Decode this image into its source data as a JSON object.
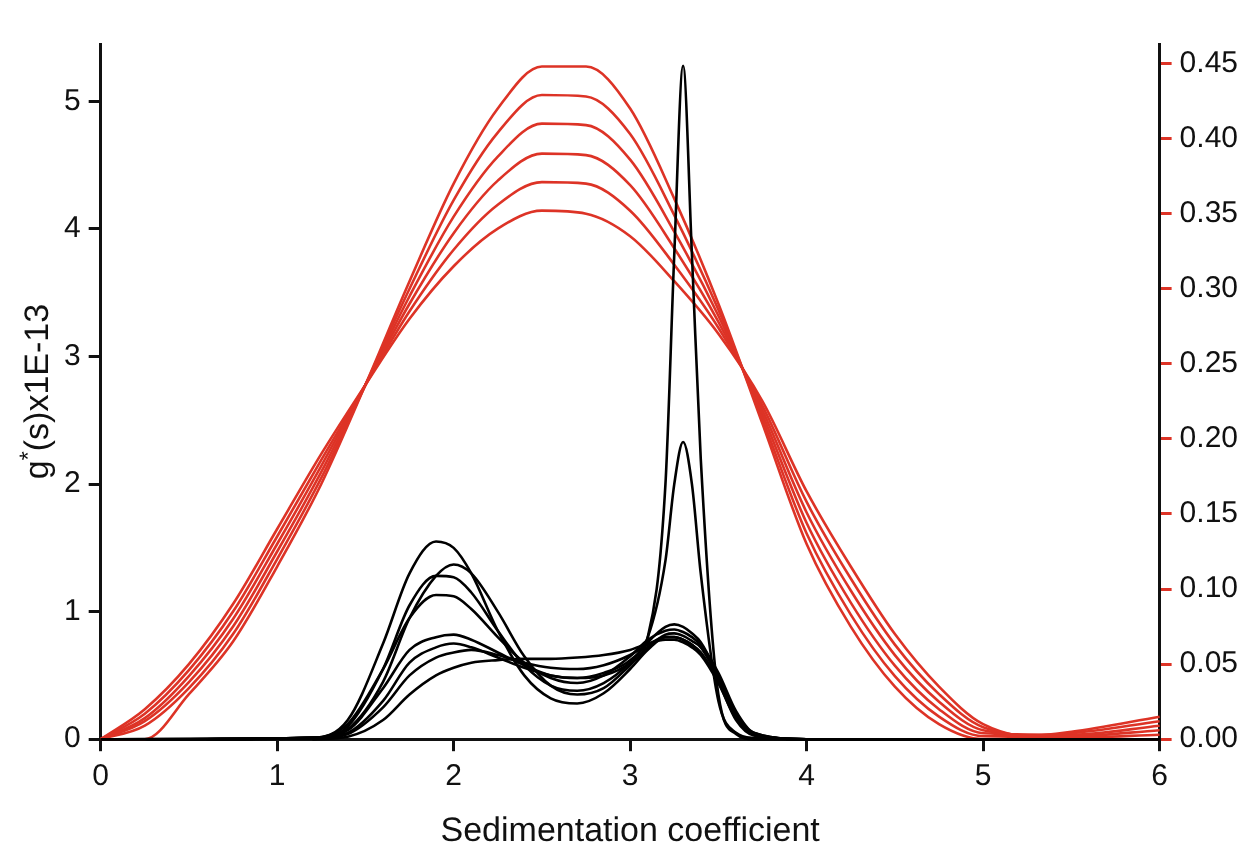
{
  "chart_data": {
    "type": "line",
    "xlabel": "Sedimentation coefficient",
    "ylabel": "g$^{*}$(s)x1E-13",
    "xlim": [
      0,
      6
    ],
    "xticks": [
      0,
      1,
      2,
      3,
      4,
      5,
      6
    ],
    "ylim": [
      0,
      5.45
    ],
    "yticks": [
      0,
      1,
      2,
      3,
      4,
      5
    ],
    "y2lim": [
      0,
      0.463
    ],
    "y2ticks": [
      {
        "value": 0,
        "label": "0.00"
      },
      {
        "value": 0.05,
        "label": "0.05"
      },
      {
        "value": 0.1,
        "label": "0.10"
      },
      {
        "value": 0.15,
        "label": "0.15"
      },
      {
        "value": 0.2,
        "label": "0.20"
      },
      {
        "value": 0.25,
        "label": "0.25"
      },
      {
        "value": 0.3,
        "label": "0.30"
      },
      {
        "value": 0.35,
        "label": "0.35"
      },
      {
        "value": 0.4,
        "label": "0.40"
      },
      {
        "value": 0.45,
        "label": "0.45"
      }
    ],
    "grid": false,
    "legend": false,
    "series": [
      {
        "color": "#000000",
        "x": [
          0,
          1.2,
          1.4,
          1.6,
          1.75,
          1.9,
          2.0,
          2.1,
          2.25,
          2.4,
          2.55,
          2.7,
          2.85,
          3.0,
          3.1,
          3.2,
          3.25,
          3.3,
          3.35,
          3.4,
          3.5,
          3.6,
          3.7,
          4,
          6
        ],
        "values": [
          0,
          0.01,
          0.15,
          0.75,
          1.3,
          1.55,
          1.5,
          1.3,
          0.85,
          0.5,
          0.32,
          0.28,
          0.36,
          0.55,
          0.7,
          0.8,
          0.8,
          0.78,
          0.74,
          0.68,
          0.45,
          0.15,
          0.03,
          0,
          0
        ]
      },
      {
        "color": "#000000",
        "x": [
          0,
          1.2,
          1.4,
          1.6,
          1.75,
          1.9,
          2.0,
          2.1,
          2.25,
          2.4,
          2.55,
          2.7,
          2.85,
          3.0,
          3.1,
          3.2,
          3.25,
          3.3,
          3.35,
          3.4,
          3.5,
          3.6,
          3.7,
          4,
          5.3
        ],
        "values": [
          0,
          0.01,
          0.08,
          0.45,
          0.95,
          1.28,
          1.37,
          1.3,
          1.0,
          0.65,
          0.42,
          0.35,
          0.4,
          0.58,
          0.72,
          0.82,
          0.83,
          0.81,
          0.77,
          0.72,
          0.48,
          0.18,
          0.04,
          0,
          0
        ]
      },
      {
        "color": "#000000",
        "x": [
          0,
          1.2,
          1.4,
          1.6,
          1.75,
          1.9,
          2.0,
          2.1,
          2.25,
          2.4,
          2.55,
          2.7,
          2.85,
          3.0,
          3.1,
          3.2,
          3.25,
          3.3,
          3.35,
          3.4,
          3.5,
          3.6,
          3.7,
          4,
          4.5
        ],
        "values": [
          0,
          0.01,
          0.1,
          0.55,
          1.05,
          1.28,
          1.27,
          1.15,
          0.85,
          0.58,
          0.42,
          0.38,
          0.44,
          0.6,
          0.76,
          0.88,
          0.9,
          0.88,
          0.83,
          0.76,
          0.5,
          0.2,
          0.05,
          0,
          0
        ]
      },
      {
        "color": "#000000",
        "x": [
          0.6,
          1.2,
          1.4,
          1.6,
          1.75,
          1.9,
          2.0,
          2.1,
          2.25,
          2.4,
          2.55,
          2.7,
          2.85,
          3.0,
          3.1,
          3.2,
          3.25,
          3.3,
          3.35,
          3.4,
          3.5,
          3.6,
          3.7,
          4,
          6
        ],
        "values": [
          0,
          0.01,
          0.12,
          0.55,
          0.95,
          1.13,
          1.12,
          1.02,
          0.8,
          0.6,
          0.48,
          0.44,
          0.5,
          0.65,
          0.78,
          0.85,
          0.86,
          0.84,
          0.8,
          0.74,
          0.52,
          0.22,
          0.05,
          0,
          0
        ]
      },
      {
        "color": "#000000",
        "x": [
          0.6,
          1.2,
          1.4,
          1.6,
          1.75,
          1.9,
          2.0,
          2.1,
          2.25,
          2.4,
          2.55,
          2.7,
          2.85,
          3.0,
          3.1,
          3.2,
          3.25,
          3.3,
          3.35,
          3.4,
          3.5,
          3.6,
          3.7,
          5.3
        ],
        "values": [
          0,
          0.01,
          0.07,
          0.4,
          0.7,
          0.8,
          0.82,
          0.78,
          0.68,
          0.58,
          0.5,
          0.48,
          0.5,
          0.6,
          0.8,
          2.0,
          3.8,
          5.28,
          3.8,
          2.2,
          0.35,
          0.04,
          0,
          0
        ]
      },
      {
        "color": "#000000",
        "x": [
          0.6,
          1.2,
          1.4,
          1.6,
          1.75,
          1.9,
          2.0,
          2.1,
          2.25,
          2.4,
          2.55,
          2.7,
          2.85,
          3.0,
          3.1,
          3.2,
          3.25,
          3.3,
          3.35,
          3.4,
          3.5,
          3.6,
          3.7,
          4,
          4.5
        ],
        "values": [
          0,
          0.01,
          0.05,
          0.3,
          0.6,
          0.72,
          0.75,
          0.72,
          0.64,
          0.56,
          0.5,
          0.48,
          0.52,
          0.62,
          0.8,
          1.4,
          2.0,
          2.33,
          2.0,
          1.3,
          0.3,
          0.05,
          0.01,
          0,
          0
        ]
      },
      {
        "color": "#000000",
        "x": [
          1.2,
          1.4,
          1.6,
          1.75,
          1.9,
          2.0,
          2.1,
          2.25,
          2.4,
          2.55,
          2.7,
          2.85,
          3.0,
          3.1,
          3.2,
          3.25,
          3.3,
          3.35,
          3.4,
          3.5,
          3.6,
          3.7,
          4,
          6
        ],
        "values": [
          0,
          0.04,
          0.25,
          0.5,
          0.64,
          0.68,
          0.7,
          0.66,
          0.6,
          0.56,
          0.55,
          0.58,
          0.66,
          0.74,
          0.8,
          0.8,
          0.78,
          0.74,
          0.68,
          0.46,
          0.18,
          0.04,
          0,
          0
        ]
      },
      {
        "color": "#000000",
        "x": [
          1.2,
          1.4,
          1.6,
          1.75,
          1.9,
          2.0,
          2.1,
          2.25,
          2.4,
          2.55,
          2.7,
          2.85,
          3.0,
          3.1,
          3.2,
          3.25,
          3.3,
          3.35,
          3.4,
          3.5,
          3.6,
          3.7
        ],
        "values": [
          0,
          0.02,
          0.15,
          0.35,
          0.5,
          0.56,
          0.6,
          0.62,
          0.63,
          0.63,
          0.64,
          0.66,
          0.7,
          0.75,
          0.78,
          0.78,
          0.76,
          0.72,
          0.66,
          0.44,
          0.16,
          0.03
        ]
      },
      {
        "axis": "y2",
        "color": "#dd3326",
        "x": [
          0,
          0.25,
          0.5,
          0.75,
          1,
          1.25,
          1.5,
          1.75,
          2,
          2.25,
          2.5,
          2.75,
          3,
          3.25,
          3.5,
          3.75,
          4,
          4.25,
          4.5,
          4.75,
          5,
          5.5,
          6
        ],
        "values": [
          0,
          0,
          0.03,
          0.065,
          0.115,
          0.17,
          0.236,
          0.305,
          0.37,
          0.42,
          0.448,
          0.448,
          0.42,
          0.36,
          0.29,
          0.21,
          0.13,
          0.075,
          0.035,
          0.01,
          0,
          0.005,
          0.015
        ]
      },
      {
        "axis": "y2",
        "color": "#dd3326",
        "x": [
          0,
          0.25,
          0.5,
          0.75,
          1,
          1.25,
          1.5,
          1.75,
          2,
          2.25,
          2.5,
          2.75,
          3,
          3.25,
          3.5,
          3.75,
          4,
          4.25,
          4.5,
          4.75,
          5,
          5.5,
          6
        ],
        "values": [
          0,
          0.009,
          0.034,
          0.07,
          0.12,
          0.174,
          0.236,
          0.3,
          0.359,
          0.404,
          0.429,
          0.428,
          0.403,
          0.349,
          0.286,
          0.213,
          0.137,
          0.083,
          0.042,
          0.015,
          0.002,
          0.004,
          0.012
        ]
      },
      {
        "axis": "y2",
        "color": "#dd3326",
        "x": [
          0,
          0.25,
          0.5,
          0.75,
          1,
          1.25,
          1.5,
          1.75,
          2,
          2.25,
          2.5,
          2.75,
          3,
          3.25,
          3.5,
          3.75,
          4,
          4.25,
          4.5,
          4.75,
          5,
          5.5,
          6
        ],
        "values": [
          0,
          0.012,
          0.038,
          0.075,
          0.125,
          0.178,
          0.236,
          0.295,
          0.348,
          0.388,
          0.41,
          0.409,
          0.386,
          0.338,
          0.282,
          0.216,
          0.144,
          0.091,
          0.049,
          0.02,
          0.004,
          0.003,
          0.009
        ]
      },
      {
        "axis": "y2",
        "color": "#dd3326",
        "x": [
          0,
          0.25,
          0.5,
          0.75,
          1,
          1.25,
          1.5,
          1.75,
          2,
          2.25,
          2.5,
          2.75,
          3,
          3.25,
          3.5,
          3.75,
          4,
          4.25,
          4.5,
          4.75,
          5,
          5.5,
          6
        ],
        "values": [
          0,
          0.014,
          0.042,
          0.08,
          0.13,
          0.182,
          0.236,
          0.29,
          0.337,
          0.372,
          0.39,
          0.389,
          0.369,
          0.327,
          0.278,
          0.219,
          0.151,
          0.099,
          0.056,
          0.025,
          0.006,
          0.002,
          0.006
        ]
      },
      {
        "axis": "y2",
        "color": "#dd3326",
        "x": [
          0,
          0.25,
          0.5,
          0.75,
          1,
          1.25,
          1.5,
          1.75,
          2,
          2.25,
          2.5,
          2.75,
          3,
          3.25,
          3.5,
          3.75,
          4,
          4.25,
          4.5,
          4.75,
          5,
          5.5,
          6
        ],
        "values": [
          0,
          0.017,
          0.046,
          0.085,
          0.135,
          0.186,
          0.236,
          0.285,
          0.326,
          0.356,
          0.371,
          0.37,
          0.352,
          0.316,
          0.274,
          0.222,
          0.158,
          0.107,
          0.063,
          0.03,
          0.008,
          0.001,
          0.003
        ]
      },
      {
        "axis": "y2",
        "color": "#dd3326",
        "x": [
          0,
          0.25,
          0.5,
          0.75,
          1,
          1.25,
          1.5,
          1.75,
          2,
          2.25,
          2.5,
          2.75,
          3,
          3.25,
          3.5,
          3.75,
          4,
          4.25,
          4.5,
          4.75,
          5,
          5.5,
          6
        ],
        "values": [
          0,
          0.02,
          0.05,
          0.09,
          0.14,
          0.19,
          0.236,
          0.28,
          0.315,
          0.34,
          0.352,
          0.35,
          0.335,
          0.305,
          0.27,
          0.225,
          0.165,
          0.115,
          0.07,
          0.035,
          0.01,
          0,
          0
        ]
      }
    ]
  }
}
